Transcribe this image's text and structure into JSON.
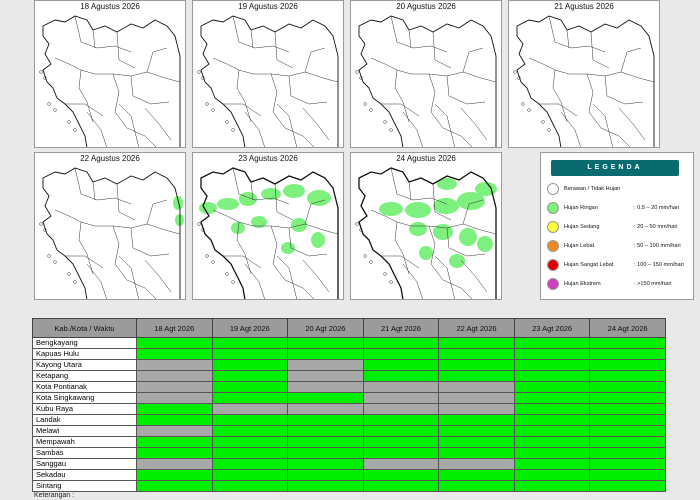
{
  "maps": [
    {
      "title": "18 Agustus 2026",
      "rain": "none"
    },
    {
      "title": "19 Agustus 2026",
      "rain": "none"
    },
    {
      "title": "20 Agustus 2026",
      "rain": "none"
    },
    {
      "title": "21 Agustus 2026",
      "rain": "none"
    },
    {
      "title": "22 Agustus 2026",
      "rain": "light"
    },
    {
      "title": "23 Agustus 2026",
      "rain": "light"
    },
    {
      "title": "24 Agustus 2026",
      "rain": "light"
    }
  ],
  "legend": {
    "title": "LEGENDA",
    "items": [
      {
        "label": "Berawan / Tidak Hujan",
        "range": "",
        "color": "#ffffff"
      },
      {
        "label": "Hujan Ringan",
        "range": ": 0.5 – 20 mm/hari",
        "color": "#7df07d"
      },
      {
        "label": "Hujan Sedang",
        "range": ": 20 – 50 mm/hari",
        "color": "#ffff33"
      },
      {
        "label": "Hujan Lebat",
        "range": ": 50 – 100 mm/hari",
        "color": "#f08a24"
      },
      {
        "label": "Hujan Sangat Lebat",
        "range": ": 100 – 150 mm/hari",
        "color": "#e00000"
      },
      {
        "label": "Hujan Ekstrem",
        "range": ": >150 mm/hari",
        "color": "#d040c0"
      }
    ]
  },
  "table": {
    "header": [
      "Kab./Kota / Waktu",
      "18 Agt 2026",
      "19 Agt 2026",
      "20 Agt 2026",
      "21 Agt 2026",
      "22 Agt 2026",
      "23 Agt 2026",
      "24 Agt 2026"
    ],
    "rows": [
      {
        "name": "Bengkayang",
        "cells": [
          "g",
          "g",
          "g",
          "g",
          "g",
          "g",
          "g"
        ]
      },
      {
        "name": "Kapuas Hulu",
        "cells": [
          "g",
          "g",
          "g",
          "g",
          "g",
          "g",
          "g"
        ]
      },
      {
        "name": "Kayong Utara",
        "cells": [
          "x",
          "g",
          "x",
          "g",
          "g",
          "g",
          "g"
        ]
      },
      {
        "name": "Ketapang",
        "cells": [
          "x",
          "g",
          "x",
          "g",
          "g",
          "g",
          "g"
        ]
      },
      {
        "name": "Kota Pontianak",
        "cells": [
          "x",
          "g",
          "x",
          "x",
          "x",
          "g",
          "g"
        ]
      },
      {
        "name": "Kota Singkawang",
        "cells": [
          "x",
          "g",
          "g",
          "x",
          "x",
          "g",
          "g"
        ]
      },
      {
        "name": "Kubu Raya",
        "cells": [
          "g",
          "x",
          "x",
          "x",
          "x",
          "g",
          "g"
        ]
      },
      {
        "name": "Landak",
        "cells": [
          "g",
          "g",
          "g",
          "g",
          "g",
          "g",
          "g"
        ]
      },
      {
        "name": "Melawi",
        "cells": [
          "x",
          "g",
          "g",
          "g",
          "g",
          "g",
          "g"
        ]
      },
      {
        "name": "Mempawah",
        "cells": [
          "g",
          "g",
          "g",
          "g",
          "g",
          "g",
          "g"
        ]
      },
      {
        "name": "Sambas",
        "cells": [
          "g",
          "g",
          "g",
          "g",
          "g",
          "g",
          "g"
        ]
      },
      {
        "name": "Sanggau",
        "cells": [
          "x",
          "g",
          "g",
          "x",
          "x",
          "g",
          "g"
        ]
      },
      {
        "name": "Sekadau",
        "cells": [
          "g",
          "g",
          "g",
          "g",
          "g",
          "g",
          "g"
        ]
      },
      {
        "name": "Sintang",
        "cells": [
          "g",
          "g",
          "g",
          "g",
          "g",
          "g",
          "g"
        ]
      }
    ]
  },
  "footer": "Keterangan :"
}
